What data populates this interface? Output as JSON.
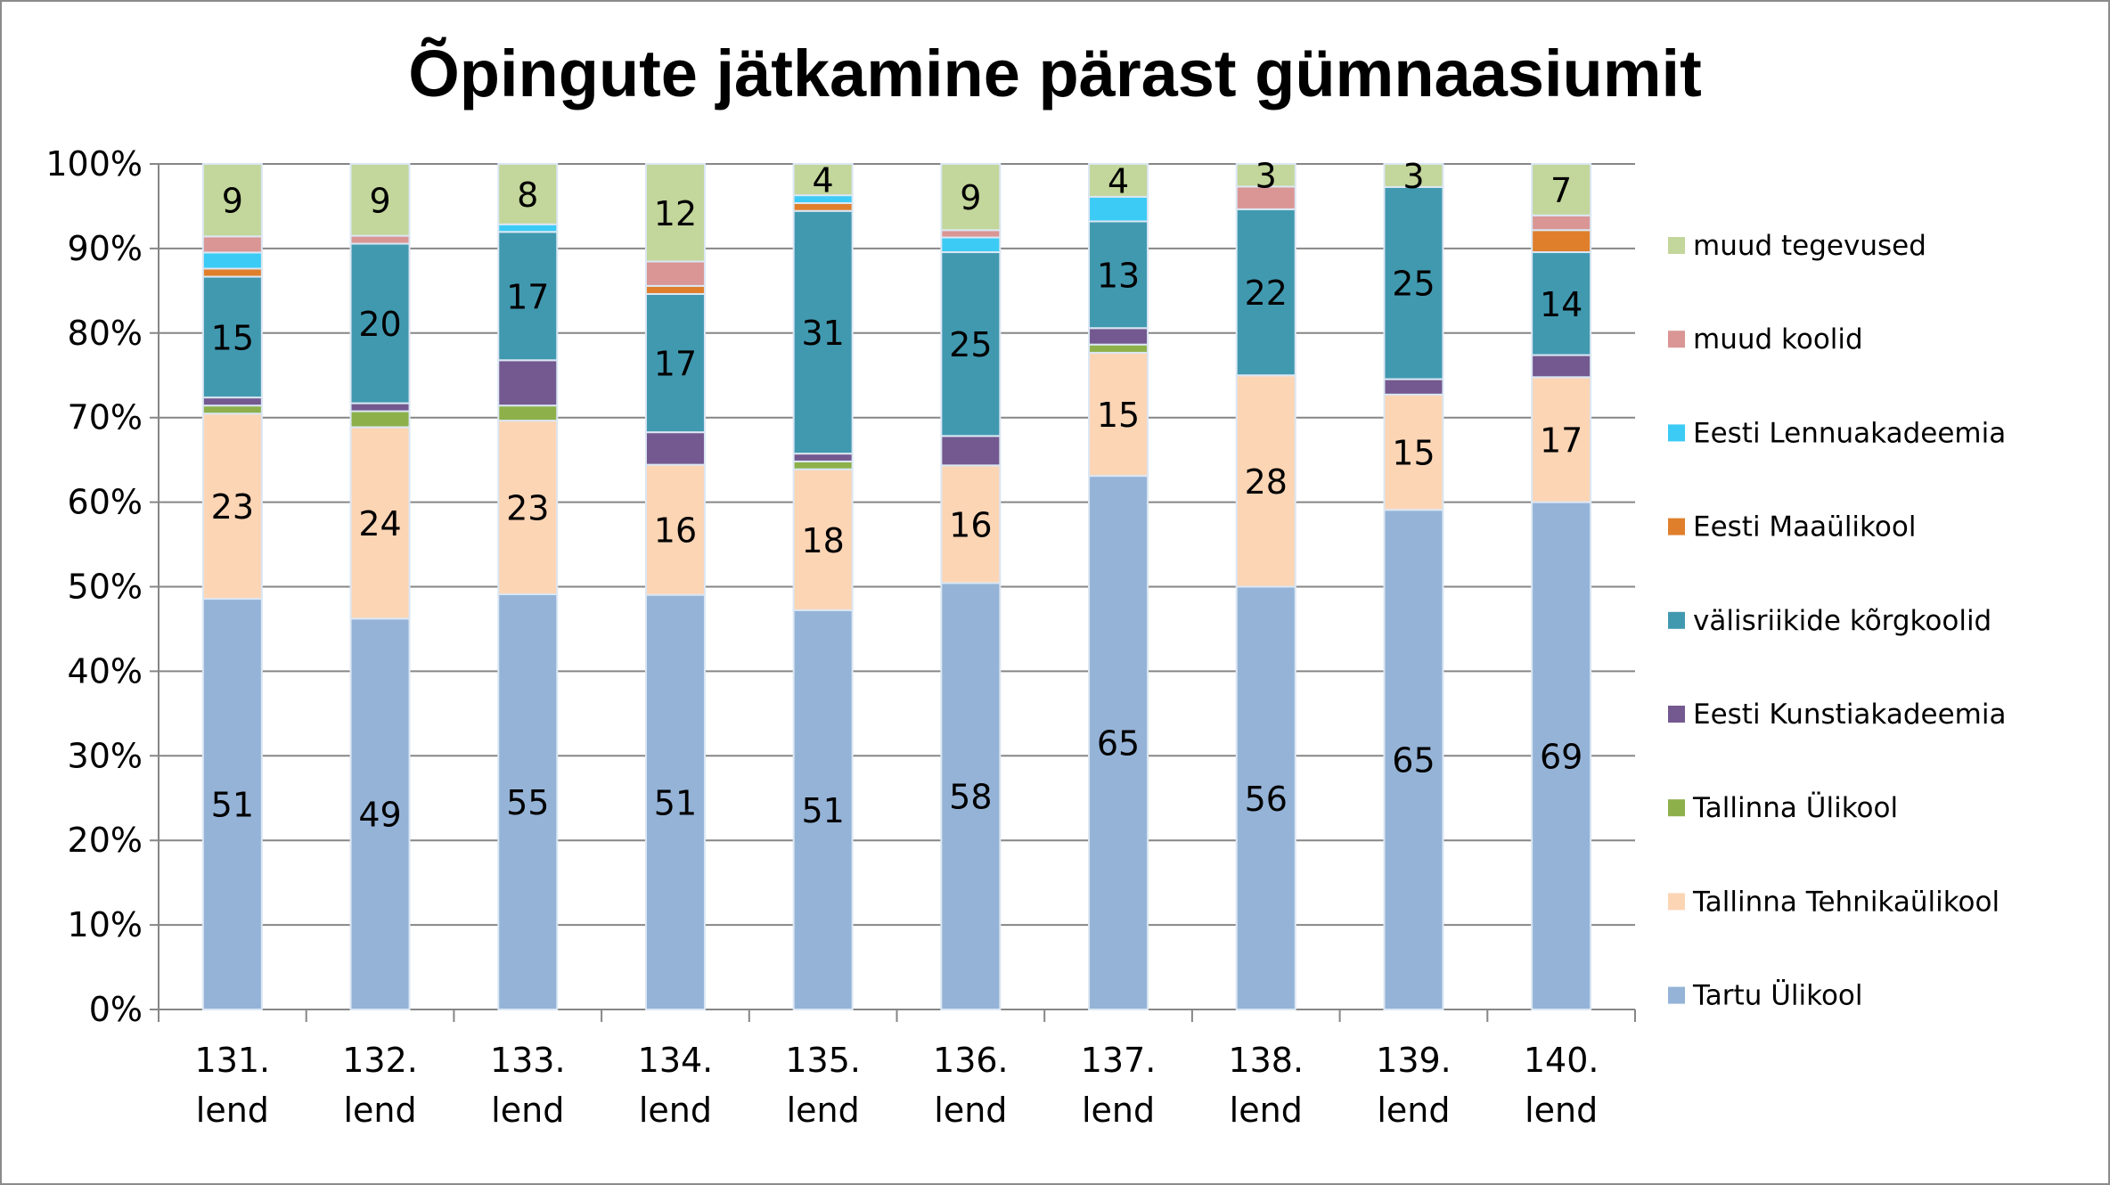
{
  "chart_data": {
    "type": "bar",
    "stacked": "percent",
    "title": "Õpingute jätkamine pärast gümnaasiumit",
    "xlabel": "",
    "ylabel": "",
    "ylim": [
      0,
      100
    ],
    "yticks": [
      "0%",
      "10%",
      "20%",
      "30%",
      "40%",
      "50%",
      "60%",
      "70%",
      "80%",
      "90%",
      "100%"
    ],
    "grid": true,
    "legend_position": "right",
    "categories": [
      [
        "131.",
        "lend"
      ],
      [
        "132.",
        "lend"
      ],
      [
        "133.",
        "lend"
      ],
      [
        "134.",
        "lend"
      ],
      [
        "135.",
        "lend"
      ],
      [
        "136.",
        "lend"
      ],
      [
        "137.",
        "lend"
      ],
      [
        "138.",
        "lend"
      ],
      [
        "139.",
        "lend"
      ],
      [
        "140.",
        "lend"
      ]
    ],
    "series": [
      {
        "name": "Tartu Ülikool",
        "color": "#95b3d7",
        "labeled": true,
        "values": [
          51,
          49,
          55,
          51,
          51,
          58,
          65,
          56,
          65,
          69
        ]
      },
      {
        "name": "Tallinna Tehnikaülikool",
        "color": "#fcd5b5",
        "labeled": true,
        "values": [
          23,
          24,
          23,
          16,
          18,
          16,
          15,
          28,
          15,
          17
        ]
      },
      {
        "name": "Tallinna Ülikool",
        "color": "#8eb04a",
        "labeled": false,
        "values": [
          1,
          2,
          2,
          0,
          1,
          0,
          1,
          0,
          0,
          0
        ]
      },
      {
        "name": "Eesti Kunstiakadeemia",
        "color": "#73598f",
        "labeled": false,
        "values": [
          1,
          1,
          6,
          4,
          1,
          4,
          2,
          0,
          2,
          3
        ]
      },
      {
        "name": "välisriikide kõrgkoolid",
        "color": "#4199b0",
        "labeled": true,
        "values": [
          15,
          20,
          17,
          17,
          31,
          25,
          13,
          22,
          25,
          14
        ]
      },
      {
        "name": "Eesti Maaülikool",
        "color": "#df7f2c",
        "labeled": false,
        "values": [
          1,
          0,
          0,
          1,
          1,
          0,
          0,
          0,
          0,
          3
        ]
      },
      {
        "name": "Eesti Lennuakadeemia",
        "color": "#3ccbf4",
        "labeled": false,
        "values": [
          2,
          0,
          1,
          0,
          1,
          2,
          3,
          0,
          0,
          0
        ]
      },
      {
        "name": "muud koolid",
        "color": "#d99694",
        "labeled": false,
        "values": [
          2,
          1,
          0,
          3,
          0,
          1,
          0,
          3,
          0,
          2
        ]
      },
      {
        "name": "muud tegevused",
        "color": "#c3d69b",
        "labeled": true,
        "values": [
          9,
          9,
          8,
          12,
          4,
          9,
          4,
          3,
          3,
          7
        ]
      }
    ]
  }
}
